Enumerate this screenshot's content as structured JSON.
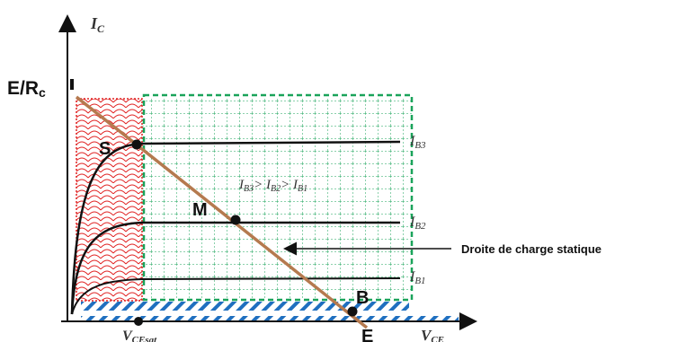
{
  "axes": {
    "y_label_main": "I",
    "y_label_sub": "C",
    "x_label_main": "V",
    "x_label_sub": "CE",
    "vcesat_main": "V",
    "vcesat_sub": "CEsat"
  },
  "labels": {
    "er_main": "E/R",
    "er_sub": "c",
    "E": "E",
    "S": "S",
    "M": "M",
    "B": "B"
  },
  "curves": {
    "ib3_main": "I",
    "ib3_sub": "B3",
    "ib2_main": "I",
    "ib2_sub": "B2",
    "ib1_main": "I",
    "ib1_sub": "B1"
  },
  "relation": {
    "p1": "I",
    "s1": "B3",
    "op1": "> ",
    "p2": "I",
    "s2": "B2",
    "op2": "> ",
    "p3": "I",
    "s3": "B1"
  },
  "annotation": {
    "load_line": "Droite de charge statique"
  },
  "colors": {
    "load_line": "#b57a4f",
    "saturation_region": "#e02020",
    "active_region": "#1aa35a",
    "cutoff_region": "#1f6fbf",
    "curves": "#111111"
  }
}
